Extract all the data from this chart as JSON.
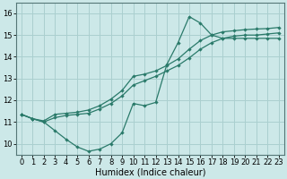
{
  "bg_color": "#cce8e8",
  "grid_color": "#aacfcf",
  "line_color": "#2a7a6a",
  "xlabel": "Humidex (Indice chaleur)",
  "xlabel_fontsize": 7,
  "tick_fontsize": 6,
  "ylim": [
    9.5,
    16.5
  ],
  "xlim": [
    -0.5,
    23.5
  ],
  "yticks": [
    10,
    11,
    12,
    13,
    14,
    15,
    16
  ],
  "xticks": [
    0,
    1,
    2,
    3,
    4,
    5,
    6,
    7,
    8,
    9,
    10,
    11,
    12,
    13,
    14,
    15,
    16,
    17,
    18,
    19,
    20,
    21,
    22,
    23
  ],
  "line1_x": [
    0,
    1,
    2,
    3,
    4,
    5,
    6,
    7,
    8,
    9,
    10,
    11,
    12,
    13,
    14,
    15,
    16,
    17,
    18,
    19,
    20,
    21,
    22,
    23
  ],
  "line1_y": [
    11.35,
    11.15,
    11.0,
    10.6,
    10.2,
    9.85,
    9.65,
    9.75,
    10.0,
    10.5,
    11.85,
    11.75,
    11.9,
    13.65,
    14.65,
    15.85,
    15.55,
    15.0,
    14.85,
    14.85,
    14.85,
    14.85,
    14.85,
    14.85
  ],
  "line2_x": [
    0,
    1,
    2,
    3,
    4,
    5,
    6,
    7,
    8,
    9,
    10,
    11,
    12,
    13,
    14,
    15,
    16,
    17,
    18,
    19,
    20,
    21,
    22,
    23
  ],
  "line2_y": [
    11.35,
    11.15,
    11.0,
    11.2,
    11.3,
    11.35,
    11.4,
    11.6,
    11.85,
    12.2,
    12.7,
    12.9,
    13.1,
    13.35,
    13.6,
    13.95,
    14.35,
    14.65,
    14.85,
    14.95,
    15.0,
    15.0,
    15.05,
    15.1
  ],
  "line3_x": [
    0,
    1,
    2,
    3,
    4,
    5,
    6,
    7,
    8,
    9,
    10,
    11,
    12,
    13,
    14,
    15,
    16,
    17,
    18,
    19,
    20,
    21,
    22,
    23
  ],
  "line3_y": [
    11.35,
    11.15,
    11.05,
    11.35,
    11.4,
    11.45,
    11.55,
    11.75,
    12.05,
    12.45,
    13.1,
    13.2,
    13.35,
    13.6,
    13.9,
    14.35,
    14.75,
    15.0,
    15.15,
    15.2,
    15.25,
    15.28,
    15.3,
    15.35
  ]
}
